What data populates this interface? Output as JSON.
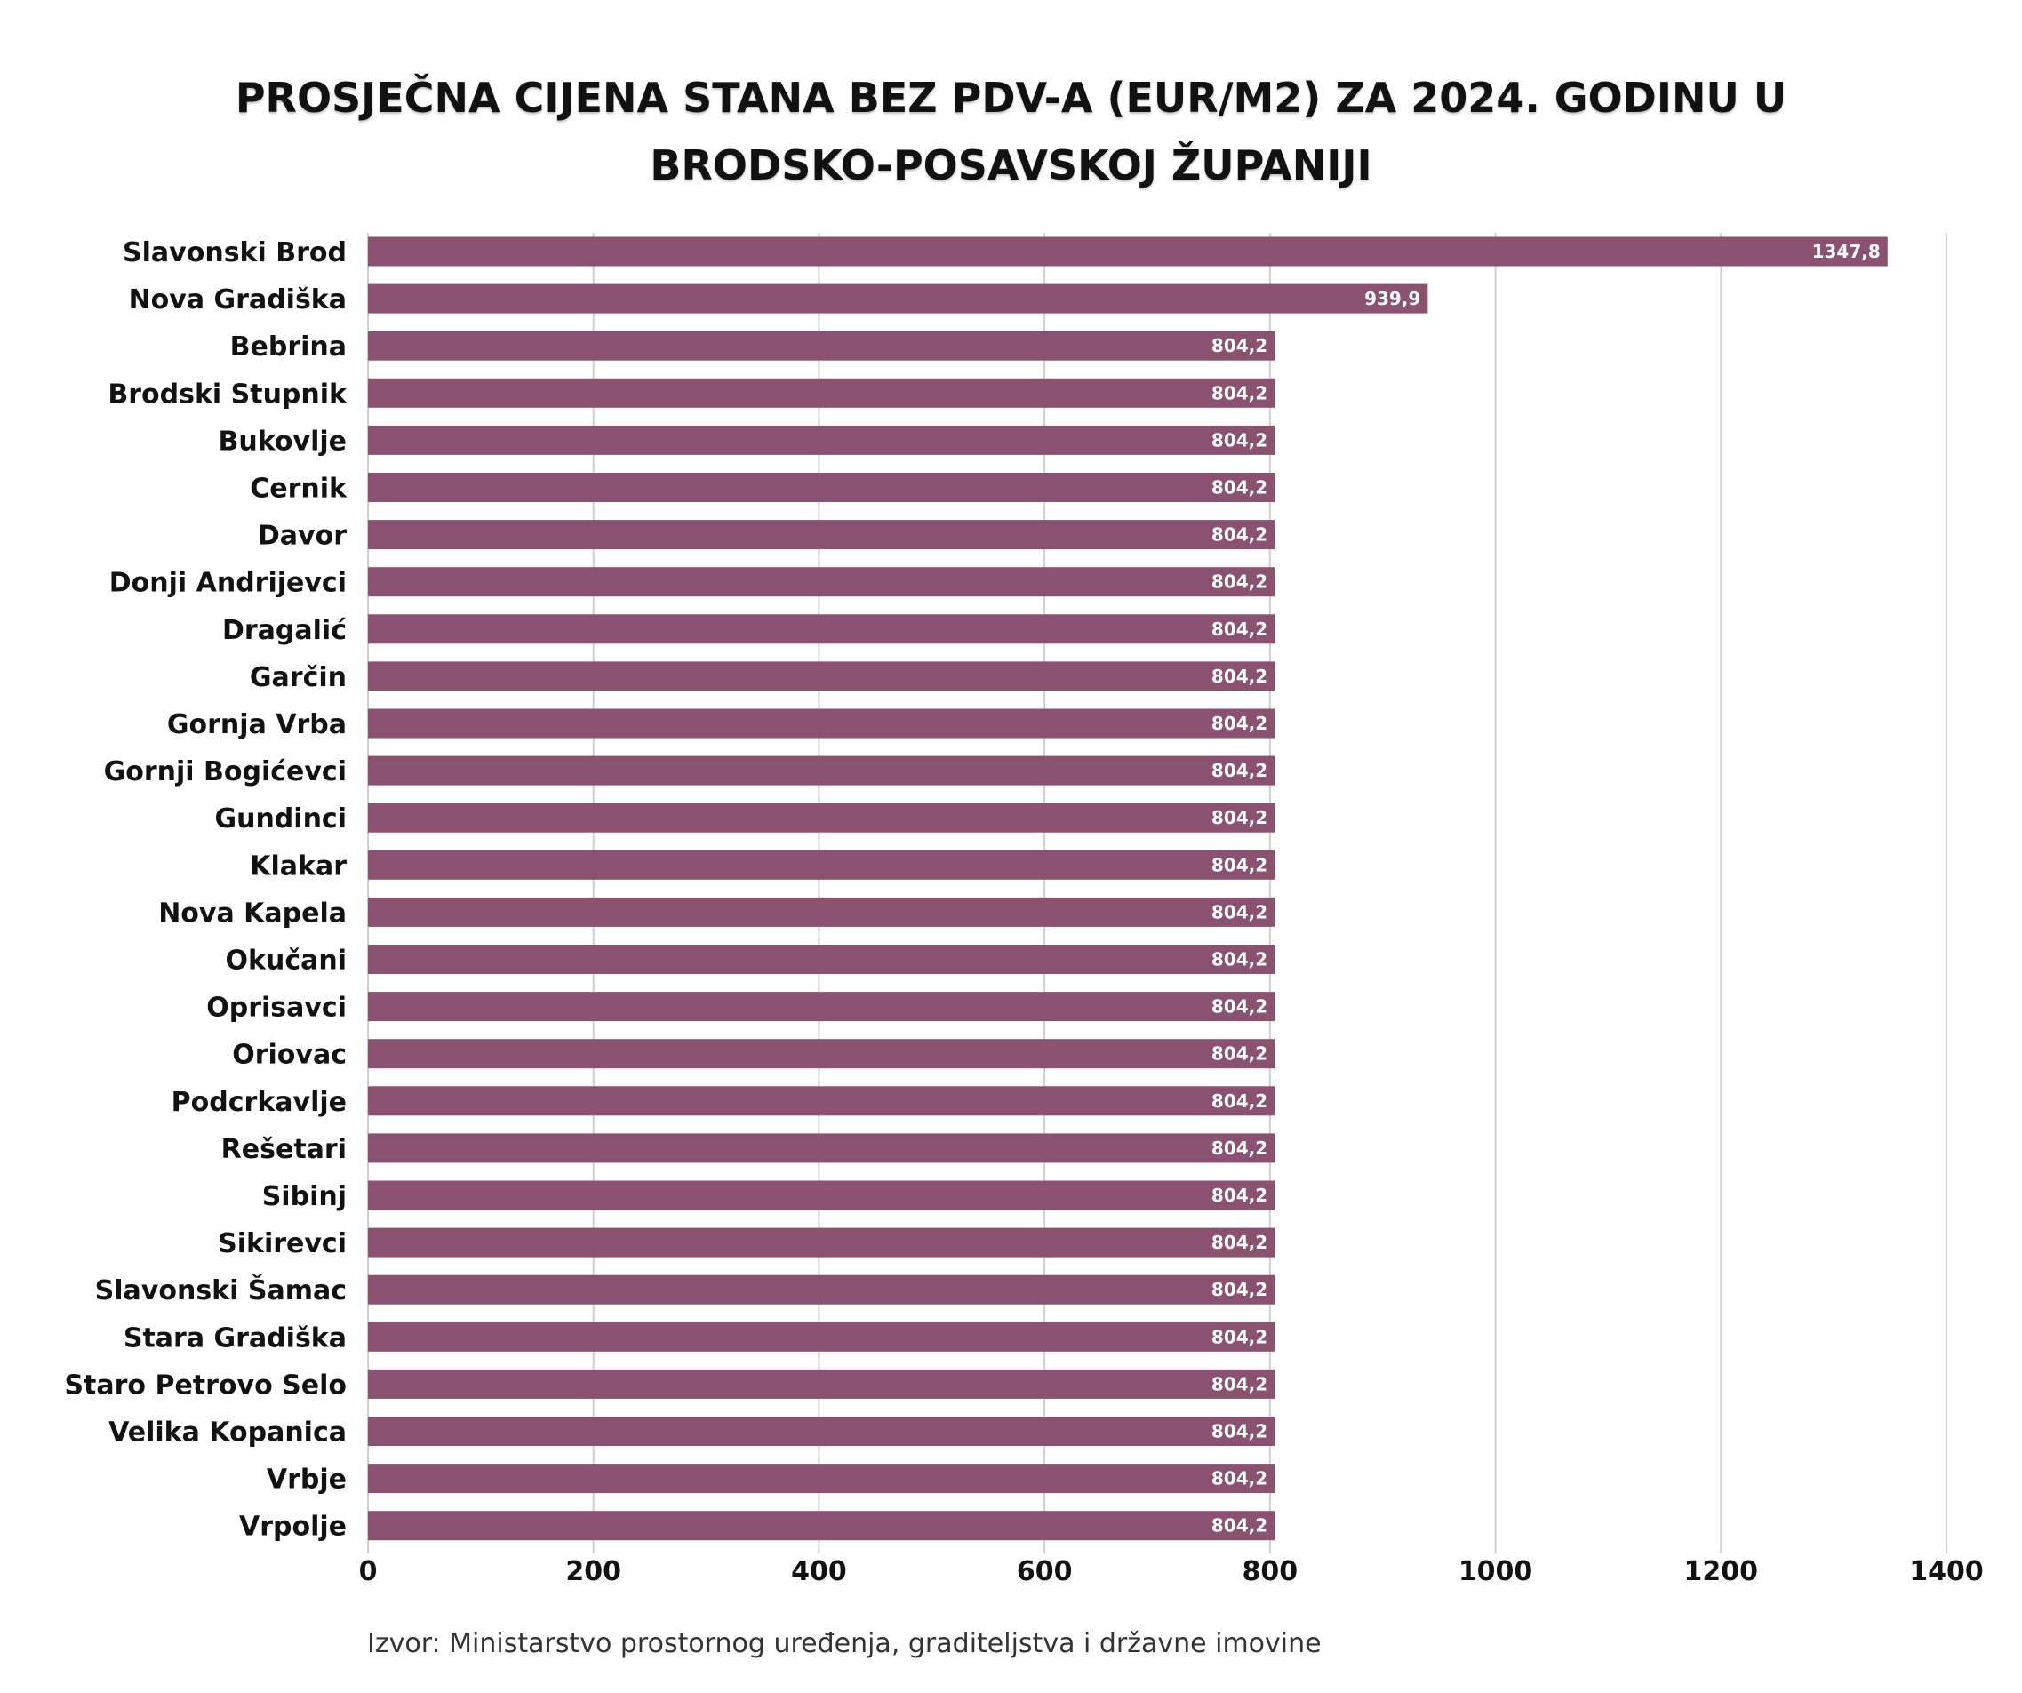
{
  "chart_data": {
    "type": "bar",
    "orientation": "horizontal",
    "title_lines": [
      "PROSJEČNA CIJENA STANA BEZ PDV-A (EUR/M2) ZA 2024. GODINU U",
      "BRODSKO-POSAVSKOJ ŽUPANIJI"
    ],
    "categories": [
      "Slavonski Brod",
      "Nova Gradiška",
      "Bebrina",
      "Brodski Stupnik",
      "Bukovlje",
      "Cernik",
      "Davor",
      "Donji Andrijevci",
      "Dragalić",
      "Garčin",
      "Gornja Vrba",
      "Gornji Bogićevci",
      "Gundinci",
      "Klakar",
      "Nova Kapela",
      "Okučani",
      "Oprisavci",
      "Oriovac",
      "Podcrkavlje",
      "Rešetari",
      "Sibinj",
      "Sikirevci",
      "Slavonski Šamac",
      "Stara Gradiška",
      "Staro Petrovo Selo",
      "Velika Kopanica",
      "Vrbje",
      "Vrpolje"
    ],
    "values": [
      1347.8,
      939.9,
      804.2,
      804.2,
      804.2,
      804.2,
      804.2,
      804.2,
      804.2,
      804.2,
      804.2,
      804.2,
      804.2,
      804.2,
      804.2,
      804.2,
      804.2,
      804.2,
      804.2,
      804.2,
      804.2,
      804.2,
      804.2,
      804.2,
      804.2,
      804.2,
      804.2,
      804.2
    ],
    "value_labels": [
      "1347,8",
      "939,9",
      "804,2",
      "804,2",
      "804,2",
      "804,2",
      "804,2",
      "804,2",
      "804,2",
      "804,2",
      "804,2",
      "804,2",
      "804,2",
      "804,2",
      "804,2",
      "804,2",
      "804,2",
      "804,2",
      "804,2",
      "804,2",
      "804,2",
      "804,2",
      "804,2",
      "804,2",
      "804,2",
      "804,2",
      "804,2",
      "804,2"
    ],
    "xlim": [
      0,
      1400
    ],
    "xticks": [
      0,
      200,
      400,
      600,
      800,
      1000,
      1200,
      1400
    ],
    "grid": true,
    "bar_color": "#8a5170",
    "source": "Izvor: Ministarstvo prostornog uređenja, graditeljstva i državne imovine"
  }
}
